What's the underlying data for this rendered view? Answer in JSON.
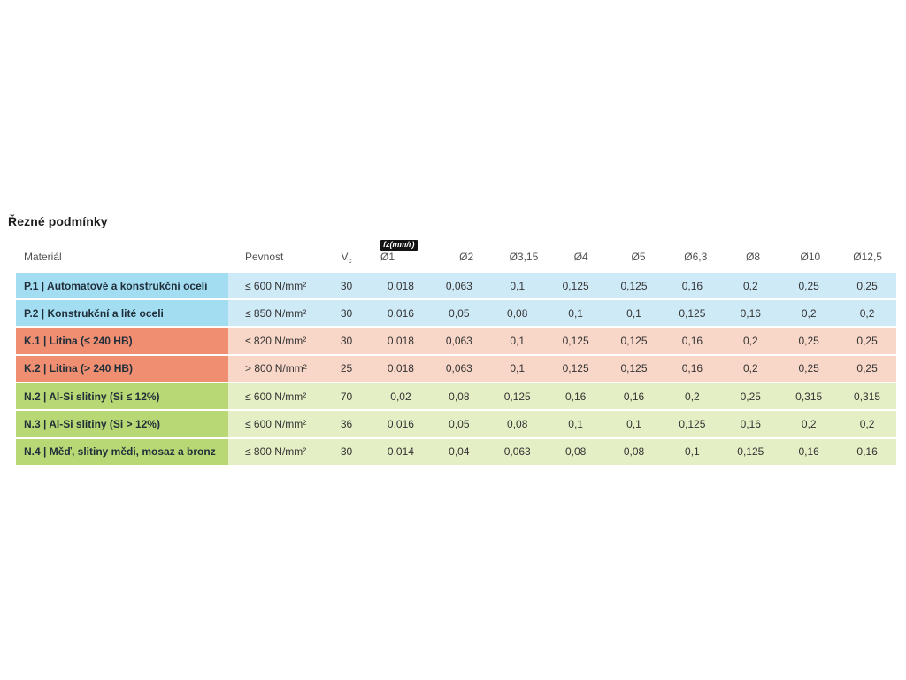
{
  "page": {
    "title": "Řezné podmínky"
  },
  "table": {
    "headers": {
      "material": "Materiál",
      "pevnost": "Pevnost",
      "vc_base": "V",
      "vc_sub": "c",
      "fz_badge": "fz(mm/r)",
      "diameters": [
        "Ø1",
        "Ø2",
        "Ø3,15",
        "Ø4",
        "Ø5",
        "Ø6,3",
        "Ø8",
        "Ø10",
        "Ø12,5"
      ]
    },
    "rows": [
      {
        "group": "blue",
        "material": "P.1 | Automatové a konstrukční oceli",
        "pevnost": "≤ 600 N/mm²",
        "vc": "30",
        "values": [
          "0,018",
          "0,063",
          "0,1",
          "0,125",
          "0,125",
          "0,16",
          "0,2",
          "0,25",
          "0,25"
        ]
      },
      {
        "group": "blue",
        "material": "P.2 | Konstrukční a lité oceli",
        "pevnost": "≤ 850 N/mm²",
        "vc": "30",
        "values": [
          "0,016",
          "0,05",
          "0,08",
          "0,1",
          "0,1",
          "0,125",
          "0,16",
          "0,2",
          "0,2"
        ]
      },
      {
        "group": "salmon",
        "material": "K.1 | Litina (≤ 240 HB)",
        "pevnost": "≤ 820 N/mm²",
        "vc": "30",
        "values": [
          "0,018",
          "0,063",
          "0,1",
          "0,125",
          "0,125",
          "0,16",
          "0,2",
          "0,25",
          "0,25"
        ]
      },
      {
        "group": "salmon",
        "material": "K.2 | Litina (> 240 HB)",
        "pevnost": "> 800 N/mm²",
        "vc": "25",
        "values": [
          "0,018",
          "0,063",
          "0,1",
          "0,125",
          "0,125",
          "0,16",
          "0,2",
          "0,25",
          "0,25"
        ]
      },
      {
        "group": "green",
        "material": "N.2 | Al-Si slitiny (Si ≤ 12%)",
        "pevnost": "≤ 600 N/mm²",
        "vc": "70",
        "values": [
          "0,02",
          "0,08",
          "0,125",
          "0,16",
          "0,16",
          "0,2",
          "0,25",
          "0,315",
          "0,315"
        ]
      },
      {
        "group": "green",
        "material": "N.3 | Al-Si slitiny (Si > 12%)",
        "pevnost": "≤ 600 N/mm²",
        "vc": "36",
        "values": [
          "0,016",
          "0,05",
          "0,08",
          "0,1",
          "0,1",
          "0,125",
          "0,16",
          "0,2",
          "0,2"
        ]
      },
      {
        "group": "green",
        "material": "N.4 | Měď, slitiny mědi, mosaz a bronz",
        "pevnost": "≤ 800 N/mm²",
        "vc": "30",
        "values": [
          "0,014",
          "0,04",
          "0,063",
          "0,08",
          "0,08",
          "0,1",
          "0,125",
          "0,16",
          "0,16"
        ]
      }
    ],
    "colors": {
      "blue_label": "#a3ddf2",
      "blue_cell": "#cfeaf7",
      "salmon_label": "#f08e72",
      "salmon_cell": "#f8d7c8",
      "green_label": "#b7d874",
      "green_cell": "#e4efc5"
    }
  }
}
